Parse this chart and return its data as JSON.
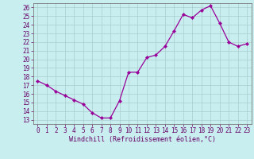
{
  "x": [
    0,
    1,
    2,
    3,
    4,
    5,
    6,
    7,
    8,
    9,
    10,
    11,
    12,
    13,
    14,
    15,
    16,
    17,
    18,
    19,
    20,
    21,
    22,
    23
  ],
  "y": [
    17.5,
    17.0,
    16.3,
    15.8,
    15.3,
    14.8,
    13.8,
    13.2,
    13.2,
    15.2,
    18.5,
    18.5,
    20.2,
    20.5,
    21.5,
    23.3,
    25.2,
    24.8,
    25.7,
    26.2,
    24.2,
    22.0,
    21.5,
    21.8
  ],
  "xlabel": "Windchill (Refroidissement éolien,°C)",
  "line_color": "#990099",
  "marker_color": "#990099",
  "bg_color": "#c8eef0",
  "grid_color": "#aacccc",
  "spine_color": "#777777",
  "text_color": "#660066",
  "ylim": [
    12.5,
    26.5
  ],
  "xlim": [
    -0.5,
    23.5
  ],
  "yticks": [
    13,
    14,
    15,
    16,
    17,
    18,
    19,
    20,
    21,
    22,
    23,
    24,
    25,
    26
  ],
  "xticks": [
    0,
    1,
    2,
    3,
    4,
    5,
    6,
    7,
    8,
    9,
    10,
    11,
    12,
    13,
    14,
    15,
    16,
    17,
    18,
    19,
    20,
    21,
    22,
    23
  ],
  "xtick_labels": [
    "0",
    "1",
    "2",
    "3",
    "4",
    "5",
    "6",
    "7",
    "8",
    "9",
    "10",
    "11",
    "12",
    "13",
    "14",
    "15",
    "16",
    "17",
    "18",
    "19",
    "20",
    "21",
    "22",
    "23"
  ],
  "ytick_labels": [
    "13",
    "14",
    "15",
    "16",
    "17",
    "18",
    "19",
    "20",
    "21",
    "22",
    "23",
    "24",
    "25",
    "26"
  ],
  "label_fontsize": 6.0,
  "tick_fontsize": 5.5,
  "linewidth": 0.9,
  "markersize": 2.2
}
